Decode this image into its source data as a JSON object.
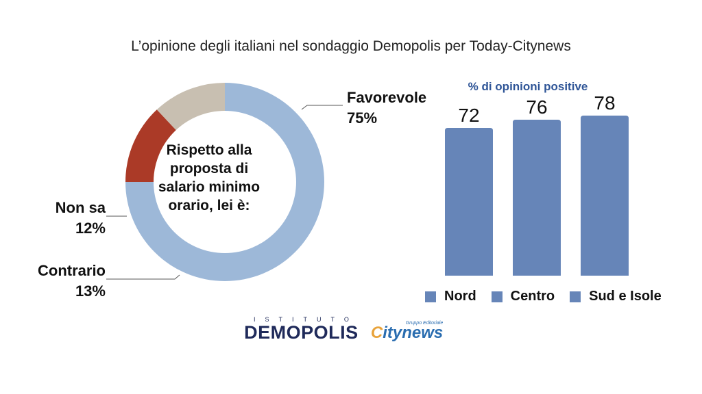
{
  "title": "L’opinione degli italiani nel sondaggio Demopolis per Today-Citynews",
  "chart_data": [
    {
      "type": "pie",
      "center_text": "Rispetto alla proposta di salario minimo orario, lei è:",
      "slices": [
        {
          "label": "Favorevole",
          "value": 75,
          "value_label": "75%",
          "color": "#9db8d8"
        },
        {
          "label": "Contrario",
          "value": 13,
          "value_label": "13%",
          "color": "#ab3a27"
        },
        {
          "label": "Non sa",
          "value": 12,
          "value_label": "12%",
          "color": "#c8bfb1"
        }
      ]
    },
    {
      "type": "bar",
      "title": "% di opinioni positive",
      "categories": [
        "Nord",
        "Centro",
        "Sud e Isole"
      ],
      "values": [
        72,
        76,
        78
      ],
      "value_labels": [
        "72",
        "76",
        "78"
      ],
      "color": "#6685b8",
      "ylim": [
        0,
        80
      ],
      "legend_position": "bottom"
    }
  ],
  "logos": {
    "demopolis_sub": "ISTITUTO",
    "demopolis_main": "DEMOPOLIS",
    "citynews_group": "Gruppo Editoriale",
    "citynews_c": "C",
    "citynews_rest": "itynews"
  }
}
